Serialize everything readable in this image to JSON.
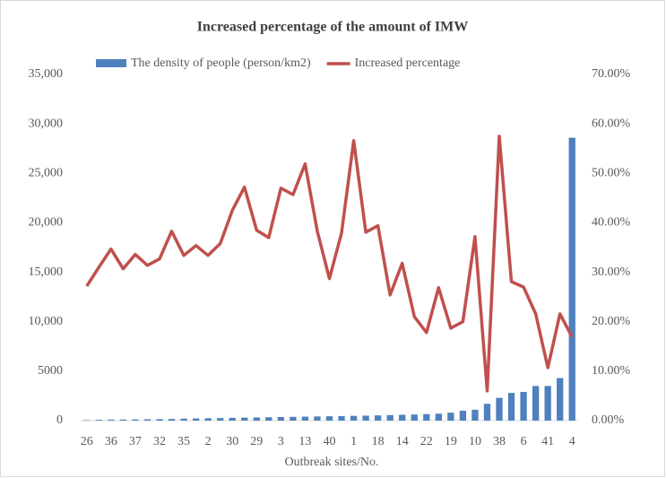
{
  "chart_data": {
    "type": "bar-line",
    "title": "Increased percentage of the amount of IMW",
    "x_label": "Outbreak sites/No.",
    "categories": [
      "26",
      null,
      "36",
      null,
      "37",
      null,
      "32",
      null,
      "35",
      null,
      "2",
      null,
      "30",
      null,
      "29",
      null,
      "3",
      null,
      "13",
      null,
      "40",
      null,
      "1",
      null,
      "18",
      null,
      "14",
      null,
      "22",
      null,
      "19",
      null,
      "10",
      null,
      "38",
      null,
      "6",
      null,
      "41",
      null,
      "4"
    ],
    "series": [
      {
        "name": "The density of people (person/km2)",
        "color": "#4e81bd",
        "type": "bar",
        "values": [
          50,
          80,
          100,
          110,
          120,
          130,
          150,
          170,
          200,
          220,
          240,
          260,
          280,
          300,
          320,
          340,
          360,
          380,
          400,
          420,
          440,
          460,
          480,
          500,
          530,
          560,
          590,
          620,
          660,
          700,
          800,
          1000,
          1100,
          1700,
          2300,
          2800,
          2900,
          3500,
          3500,
          4300,
          28600
        ]
      },
      {
        "name": "Increased percentage",
        "color": "#c0504d",
        "type": "line",
        "axis": "y2",
        "values": [
          27.2,
          31,
          34.7,
          30.7,
          33.6,
          31.4,
          32.7,
          38.3,
          33.4,
          35.4,
          33.4,
          35.8,
          42.5,
          47.2,
          38.5,
          37,
          47,
          45.7,
          51.9,
          38.3,
          28.7,
          37.9,
          56.6,
          38.1,
          39.4,
          25.4,
          31.8,
          21,
          17.8,
          26.9,
          18.7,
          20,
          37.2,
          6,
          57.5,
          28.1,
          27,
          21.6,
          10.7,
          21.6,
          16.9
        ]
      }
    ],
    "ylim": [
      0,
      35000
    ],
    "yticks": [
      0,
      5000,
      {
        "value": 10000,
        "label": "10,000"
      },
      {
        "value": 15000,
        "label": "15,000"
      },
      {
        "value": 20000,
        "label": "20,000"
      },
      {
        "value": 25000,
        "label": "25,000"
      },
      {
        "value": 30000,
        "label": "30,000"
      },
      {
        "value": 35000,
        "label": "35,000"
      }
    ],
    "y2lim": [
      0,
      70
    ],
    "y2ticks": [
      {
        "value": 0,
        "label": "0.00%"
      },
      {
        "value": 10,
        "label": "10.00%"
      },
      {
        "value": 20,
        "label": "20.00%"
      },
      {
        "value": 30,
        "label": "30.00%"
      },
      {
        "value": 40,
        "label": "40.00%"
      },
      {
        "value": 50,
        "label": "50.00%"
      },
      {
        "value": 60,
        "label": "60.00%"
      },
      {
        "value": 70,
        "label": "70.00%"
      }
    ],
    "legend": "top",
    "grid": false
  }
}
